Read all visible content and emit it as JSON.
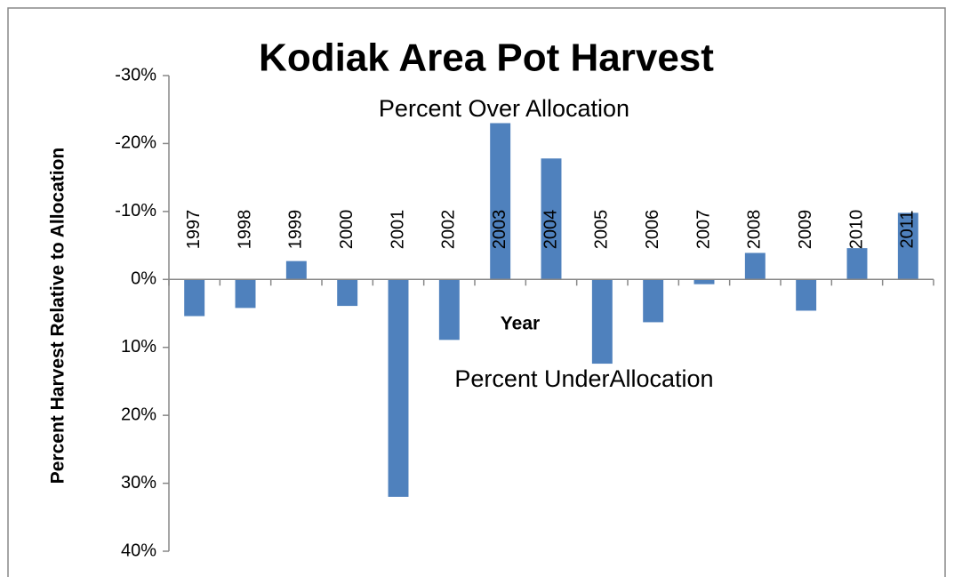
{
  "chart_data": {
    "type": "bar",
    "title": "Kodiak Area Pot Harvest",
    "y_label": "Percent Harvest Relative to Allocation",
    "x_label": "Year",
    "annotations": [
      "Percent Over Allocation",
      "Percent UnderAllocation"
    ],
    "categories": [
      "1997",
      "1998",
      "1999",
      "2000",
      "2001",
      "2002",
      "2003",
      "2004",
      "2005",
      "2006",
      "2007",
      "2008",
      "2009",
      "2010",
      "2011"
    ],
    "values": [
      5.4,
      4.2,
      -2.7,
      3.9,
      32.0,
      8.9,
      -23.0,
      -17.8,
      12.4,
      6.3,
      0.7,
      -3.9,
      4.6,
      -4.6,
      -9.8
    ],
    "color": "#4f81bd",
    "ylim": [
      -30,
      40
    ],
    "y_reversed": true,
    "yticks": [
      {
        "value": -30,
        "label": "-30%"
      },
      {
        "value": -20,
        "label": "-20%"
      },
      {
        "value": -10,
        "label": "-10%"
      },
      {
        "value": 0,
        "label": "0%"
      },
      {
        "value": 10,
        "label": "10%"
      },
      {
        "value": 20,
        "label": "20%"
      },
      {
        "value": 30,
        "label": "30%"
      },
      {
        "value": 40,
        "label": "40%"
      }
    ],
    "grid": false
  }
}
